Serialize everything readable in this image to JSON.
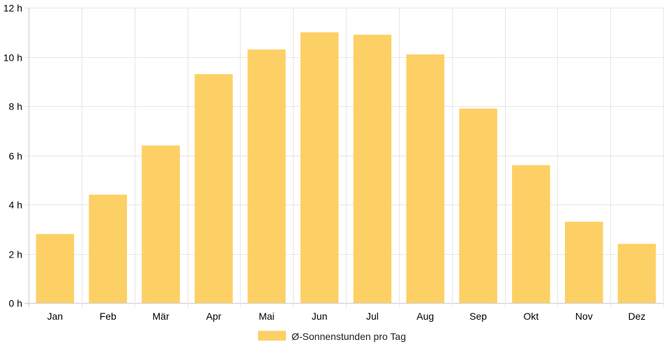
{
  "chart_data": {
    "type": "bar",
    "categories": [
      "Jan",
      "Feb",
      "Mär",
      "Apr",
      "Mai",
      "Jun",
      "Jul",
      "Aug",
      "Sep",
      "Okt",
      "Nov",
      "Dez"
    ],
    "series": [
      {
        "name": "Ø-Sonnenstunden pro Tag",
        "values": [
          2.8,
          4.4,
          6.4,
          9.3,
          10.3,
          11.0,
          10.9,
          10.1,
          7.9,
          5.6,
          3.3,
          2.4
        ],
        "color": "#fdd066"
      }
    ],
    "y_ticks": [
      "0 h",
      "2 h",
      "4 h",
      "6 h",
      "8 h",
      "10 h",
      "12 h"
    ],
    "ylim": [
      0,
      12
    ],
    "grid": true,
    "legend_position": "bottom-center",
    "colors": {
      "bar": "#fdd066",
      "grid": "#e6e6e6",
      "axis": "#cccccc",
      "text": "#000000"
    }
  }
}
